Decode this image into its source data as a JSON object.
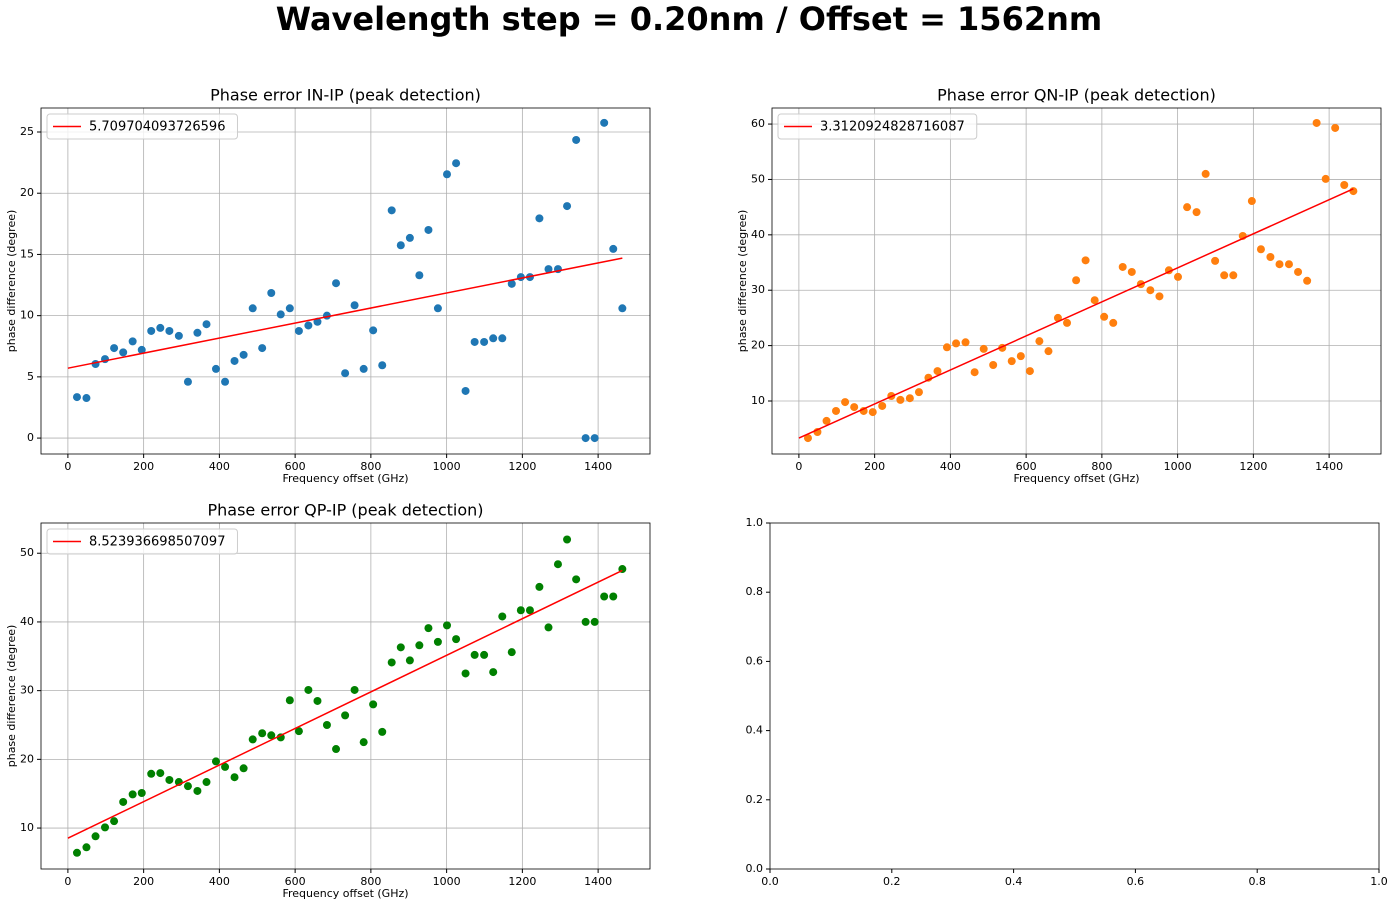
{
  "title": "Wavelength step = 0.20nm / Offset = 1562nm",
  "chart_data": [
    {
      "type": "scatter",
      "title": "Phase error IN-IP (peak detection)",
      "xlabel": "Frequency offset (GHz)",
      "ylabel": "phase difference (degree)",
      "x": [
        24,
        49,
        73,
        98,
        122,
        146,
        171,
        195,
        220,
        244,
        268,
        293,
        317,
        342,
        366,
        391,
        415,
        440,
        464,
        488,
        513,
        537,
        562,
        586,
        610,
        635,
        659,
        684,
        708,
        732,
        757,
        781,
        806,
        830,
        855,
        879,
        903,
        928,
        952,
        977,
        1001,
        1025,
        1050,
        1074,
        1099,
        1123,
        1147,
        1172,
        1196,
        1220,
        1245,
        1269,
        1294,
        1318,
        1342,
        1367,
        1391,
        1416,
        1440,
        1464
      ],
      "values": [
        3.35,
        3.27,
        6.05,
        6.45,
        7.35,
        7.0,
        7.9,
        7.2,
        8.75,
        9.0,
        8.75,
        8.35,
        4.6,
        8.6,
        9.3,
        5.65,
        4.6,
        6.3,
        6.8,
        10.6,
        7.35,
        11.85,
        10.1,
        10.6,
        8.75,
        9.2,
        9.5,
        10.0,
        12.65,
        5.3,
        10.85,
        5.65,
        8.8,
        5.95,
        18.6,
        15.75,
        16.35,
        13.3,
        17.0,
        10.6,
        21.55,
        22.45,
        3.85,
        7.85,
        7.85,
        8.15,
        8.15,
        12.6,
        13.15,
        13.15,
        17.95,
        13.8,
        13.8,
        18.95,
        24.35,
        0,
        0,
        25.75,
        15.45,
        10.6
      ],
      "color": "#1f77b4",
      "fit": {
        "name": "5.709704093726596",
        "color": "#ff0000",
        "x": [
          0,
          1464
        ],
        "values": [
          5.71,
          14.7
        ]
      },
      "xlim": [
        -71,
        1537
      ],
      "ylim": [
        -1.3,
        26.96
      ],
      "xticks": [
        0,
        200,
        400,
        600,
        800,
        1000,
        1200,
        1400
      ],
      "yticks": [
        0,
        5,
        10,
        15,
        20,
        25
      ],
      "grid": true,
      "legend": "upper-left"
    },
    {
      "type": "scatter",
      "title": "Phase error QN-IP (peak detection)",
      "xlabel": "Frequency offset (GHz)",
      "ylabel": "phase difference (degree)",
      "x": [
        24,
        49,
        73,
        98,
        122,
        146,
        171,
        195,
        220,
        244,
        268,
        293,
        317,
        342,
        366,
        391,
        415,
        440,
        464,
        488,
        513,
        537,
        562,
        586,
        610,
        635,
        659,
        684,
        708,
        732,
        757,
        781,
        806,
        830,
        855,
        879,
        903,
        928,
        952,
        977,
        1001,
        1025,
        1050,
        1074,
        1099,
        1123,
        1147,
        1172,
        1196,
        1220,
        1245,
        1269,
        1294,
        1318,
        1342,
        1367,
        1391,
        1416,
        1440,
        1464
      ],
      "values": [
        3.3,
        4.4,
        6.4,
        8.2,
        9.8,
        8.9,
        8.2,
        8.0,
        9.1,
        10.9,
        10.2,
        10.5,
        11.6,
        14.2,
        15.4,
        19.7,
        20.4,
        20.6,
        15.2,
        19.4,
        16.5,
        19.6,
        17.2,
        18.1,
        15.4,
        20.8,
        19.0,
        25.0,
        24.1,
        31.8,
        35.4,
        28.2,
        25.2,
        24.1,
        34.2,
        33.3,
        31.1,
        30.0,
        28.9,
        33.6,
        32.4,
        45.0,
        44.1,
        51.0,
        35.3,
        32.7,
        32.7,
        39.8,
        46.1,
        37.4,
        36.0,
        34.7,
        34.7,
        33.3,
        31.7,
        60.2,
        50.1,
        59.3,
        49.0,
        47.9
      ],
      "color": "#ff7f0e",
      "fit": {
        "name": "3.3120924828716087",
        "color": "#ff0000",
        "x": [
          0,
          1464
        ],
        "values": [
          3.31,
          48.3
        ]
      },
      "xlim": [
        -71,
        1537
      ],
      "ylim": [
        0.43,
        62.9
      ],
      "xticks": [
        0,
        200,
        400,
        600,
        800,
        1000,
        1200,
        1400
      ],
      "yticks": [
        10,
        20,
        30,
        40,
        50,
        60
      ],
      "grid": true,
      "legend": "upper-left"
    },
    {
      "type": "scatter",
      "title": "Phase error QP-IP (peak detection)",
      "xlabel": "Frequency offset (GHz)",
      "ylabel": "phase difference (degree)",
      "x": [
        24,
        49,
        73,
        98,
        122,
        146,
        171,
        195,
        220,
        244,
        268,
        293,
        317,
        342,
        366,
        391,
        415,
        440,
        464,
        488,
        513,
        537,
        562,
        586,
        610,
        635,
        659,
        684,
        708,
        732,
        757,
        781,
        806,
        830,
        855,
        879,
        903,
        928,
        952,
        977,
        1001,
        1025,
        1050,
        1074,
        1099,
        1123,
        1147,
        1172,
        1196,
        1220,
        1245,
        1269,
        1294,
        1318,
        1342,
        1367,
        1391,
        1416,
        1440,
        1464
      ],
      "values": [
        6.4,
        7.2,
        8.8,
        10.1,
        11.0,
        13.8,
        14.9,
        15.1,
        17.9,
        18.0,
        17.0,
        16.7,
        16.1,
        15.4,
        16.7,
        19.7,
        18.9,
        17.4,
        18.7,
        22.9,
        23.8,
        23.5,
        23.2,
        28.6,
        24.1,
        30.1,
        28.5,
        25.0,
        21.5,
        26.4,
        30.1,
        22.5,
        28.0,
        24.0,
        34.1,
        36.3,
        34.4,
        36.6,
        39.1,
        37.1,
        39.5,
        37.5,
        32.5,
        35.2,
        35.2,
        32.7,
        40.8,
        35.6,
        41.7,
        41.7,
        45.1,
        39.2,
        48.4,
        52.0,
        46.2,
        40.0,
        40.0,
        43.7,
        43.7,
        47.7
      ],
      "color": "#008000",
      "fit": {
        "name": "8.523936698507097",
        "color": "#ff0000",
        "x": [
          0,
          1464
        ],
        "values": [
          8.52,
          47.5
        ]
      },
      "xlim": [
        -71,
        1537
      ],
      "ylim": [
        4.04,
        54.4
      ],
      "xticks": [
        0,
        200,
        400,
        600,
        800,
        1000,
        1200,
        1400
      ],
      "yticks": [
        10,
        20,
        30,
        40,
        50
      ],
      "grid": true,
      "legend": "upper-left"
    },
    {
      "type": "scatter",
      "xlim": [
        0,
        1
      ],
      "ylim": [
        0,
        1
      ],
      "xticks": [
        {
          "value": 0,
          "label": "0.0"
        },
        {
          "value": 0.2,
          "label": "0.2"
        },
        {
          "value": 0.4,
          "label": "0.4"
        },
        {
          "value": 0.6,
          "label": "0.6"
        },
        {
          "value": 0.8,
          "label": "0.8"
        },
        {
          "value": 1,
          "label": "1.0"
        }
      ],
      "yticks": [
        {
          "value": 0,
          "label": "0.0"
        },
        {
          "value": 0.2,
          "label": "0.2"
        },
        {
          "value": 0.4,
          "label": "0.4"
        },
        {
          "value": 0.6,
          "label": "0.6"
        },
        {
          "value": 0.8,
          "label": "0.8"
        },
        {
          "value": 1,
          "label": "1.0"
        }
      ],
      "grid": false
    }
  ]
}
